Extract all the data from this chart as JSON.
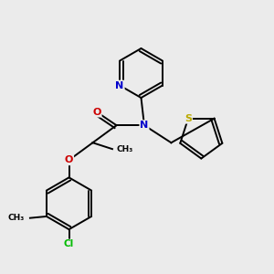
{
  "bg_color": "#ebebeb",
  "atom_colors": {
    "C": "#000000",
    "N": "#0000cc",
    "O": "#cc0000",
    "S": "#bbaa00",
    "Cl": "#00bb00",
    "H": "#000000"
  },
  "lw": 1.4
}
